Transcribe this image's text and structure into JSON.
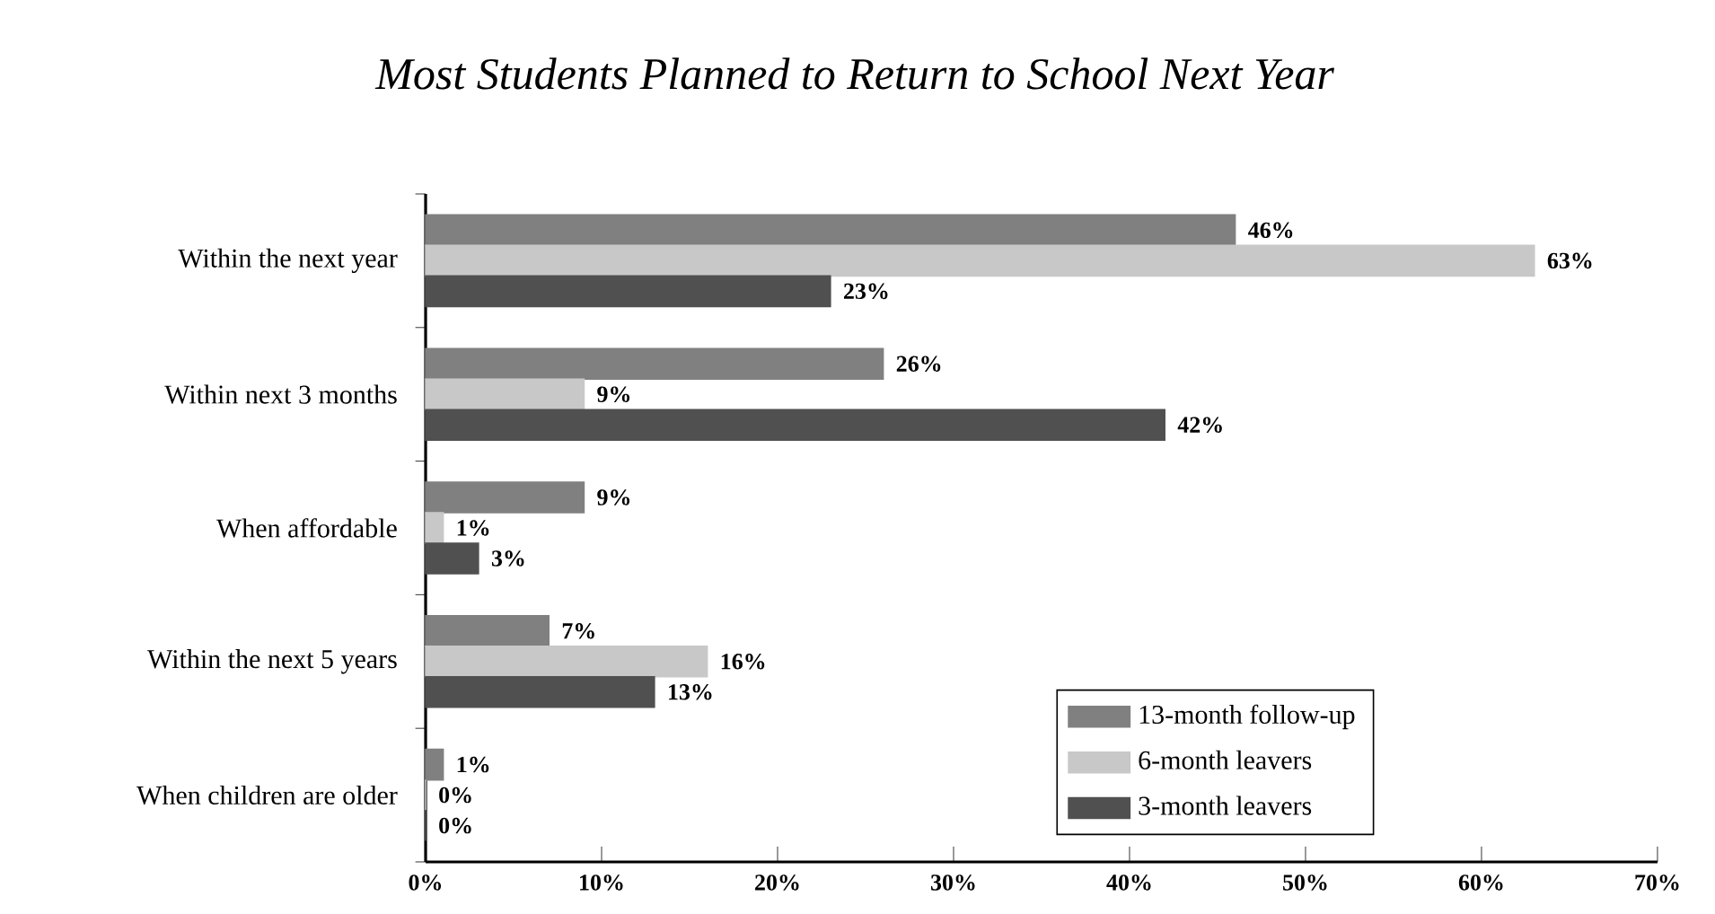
{
  "chart_data": {
    "type": "bar",
    "orientation": "horizontal",
    "title": "Most Students Planned to Return to School Next Year",
    "categories": [
      "Within the next year",
      "Within next 3 months",
      "When affordable",
      "Within the next 5 years",
      "When children are older"
    ],
    "series": [
      {
        "name": "13-month follow-up",
        "color": "#808080",
        "values": [
          46,
          26,
          9,
          7,
          1
        ],
        "value_labels": [
          "46%",
          "26%",
          "9%",
          "7%",
          "1%"
        ]
      },
      {
        "name": "6-month leavers",
        "color": "#c8c8c8",
        "values": [
          63,
          9,
          1,
          16,
          0
        ],
        "value_labels": [
          "63%",
          "9%",
          "1%",
          "16%",
          "0%"
        ]
      },
      {
        "name": "3-month leavers",
        "color": "#505050",
        "values": [
          23,
          42,
          3,
          13,
          0
        ],
        "value_labels": [
          "23%",
          "42%",
          "3%",
          "13%",
          "0%"
        ]
      }
    ],
    "xlim": [
      0,
      70
    ],
    "xticks": [
      {
        "value": 0,
        "label": "0%"
      },
      {
        "value": 10,
        "label": "10%"
      },
      {
        "value": 20,
        "label": "20%"
      },
      {
        "value": 30,
        "label": "30%"
      },
      {
        "value": 40,
        "label": "40%"
      },
      {
        "value": 50,
        "label": "50%"
      },
      {
        "value": 60,
        "label": "60%"
      },
      {
        "value": 70,
        "label": "70%"
      }
    ],
    "legend": "bottom right",
    "grid": false
  }
}
